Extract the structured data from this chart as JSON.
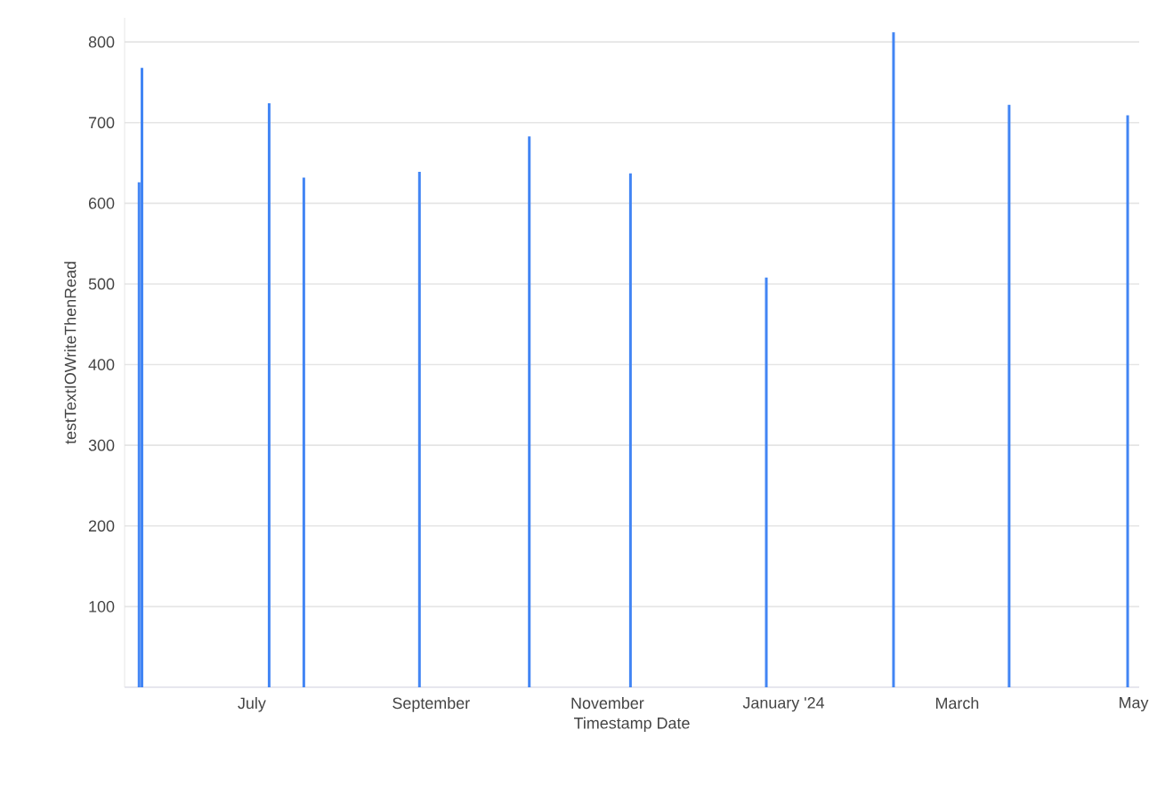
{
  "chart_data": {
    "type": "bar",
    "xlabel": "Timestamp Date",
    "ylabel": "testTextIOWriteThenRead",
    "x": [
      "2023-05-23",
      "2023-05-24",
      "2023-07-07",
      "2023-07-19",
      "2023-08-28",
      "2023-10-05",
      "2023-11-09",
      "2023-12-26",
      "2024-02-08",
      "2024-03-19",
      "2024-04-29"
    ],
    "values": [
      626,
      768,
      724,
      632,
      639,
      683,
      637,
      508,
      812,
      722,
      709
    ],
    "color": "#4285f4",
    "xlim": [
      "2023-05-18",
      "2024-05-03"
    ],
    "xticks": [
      {
        "value": "2023-07-01",
        "label": "July"
      },
      {
        "value": "2023-09-01",
        "label": "September"
      },
      {
        "value": "2023-11-01",
        "label": "November"
      },
      {
        "value": "2024-01-01",
        "label": "January '24"
      },
      {
        "value": "2024-03-01",
        "label": "March"
      },
      {
        "value": "2024-05-01",
        "label": "May"
      }
    ],
    "ylim": [
      0,
      830
    ],
    "yticks": [
      100,
      200,
      300,
      400,
      500,
      600,
      700,
      800
    ],
    "grid": "y"
  }
}
